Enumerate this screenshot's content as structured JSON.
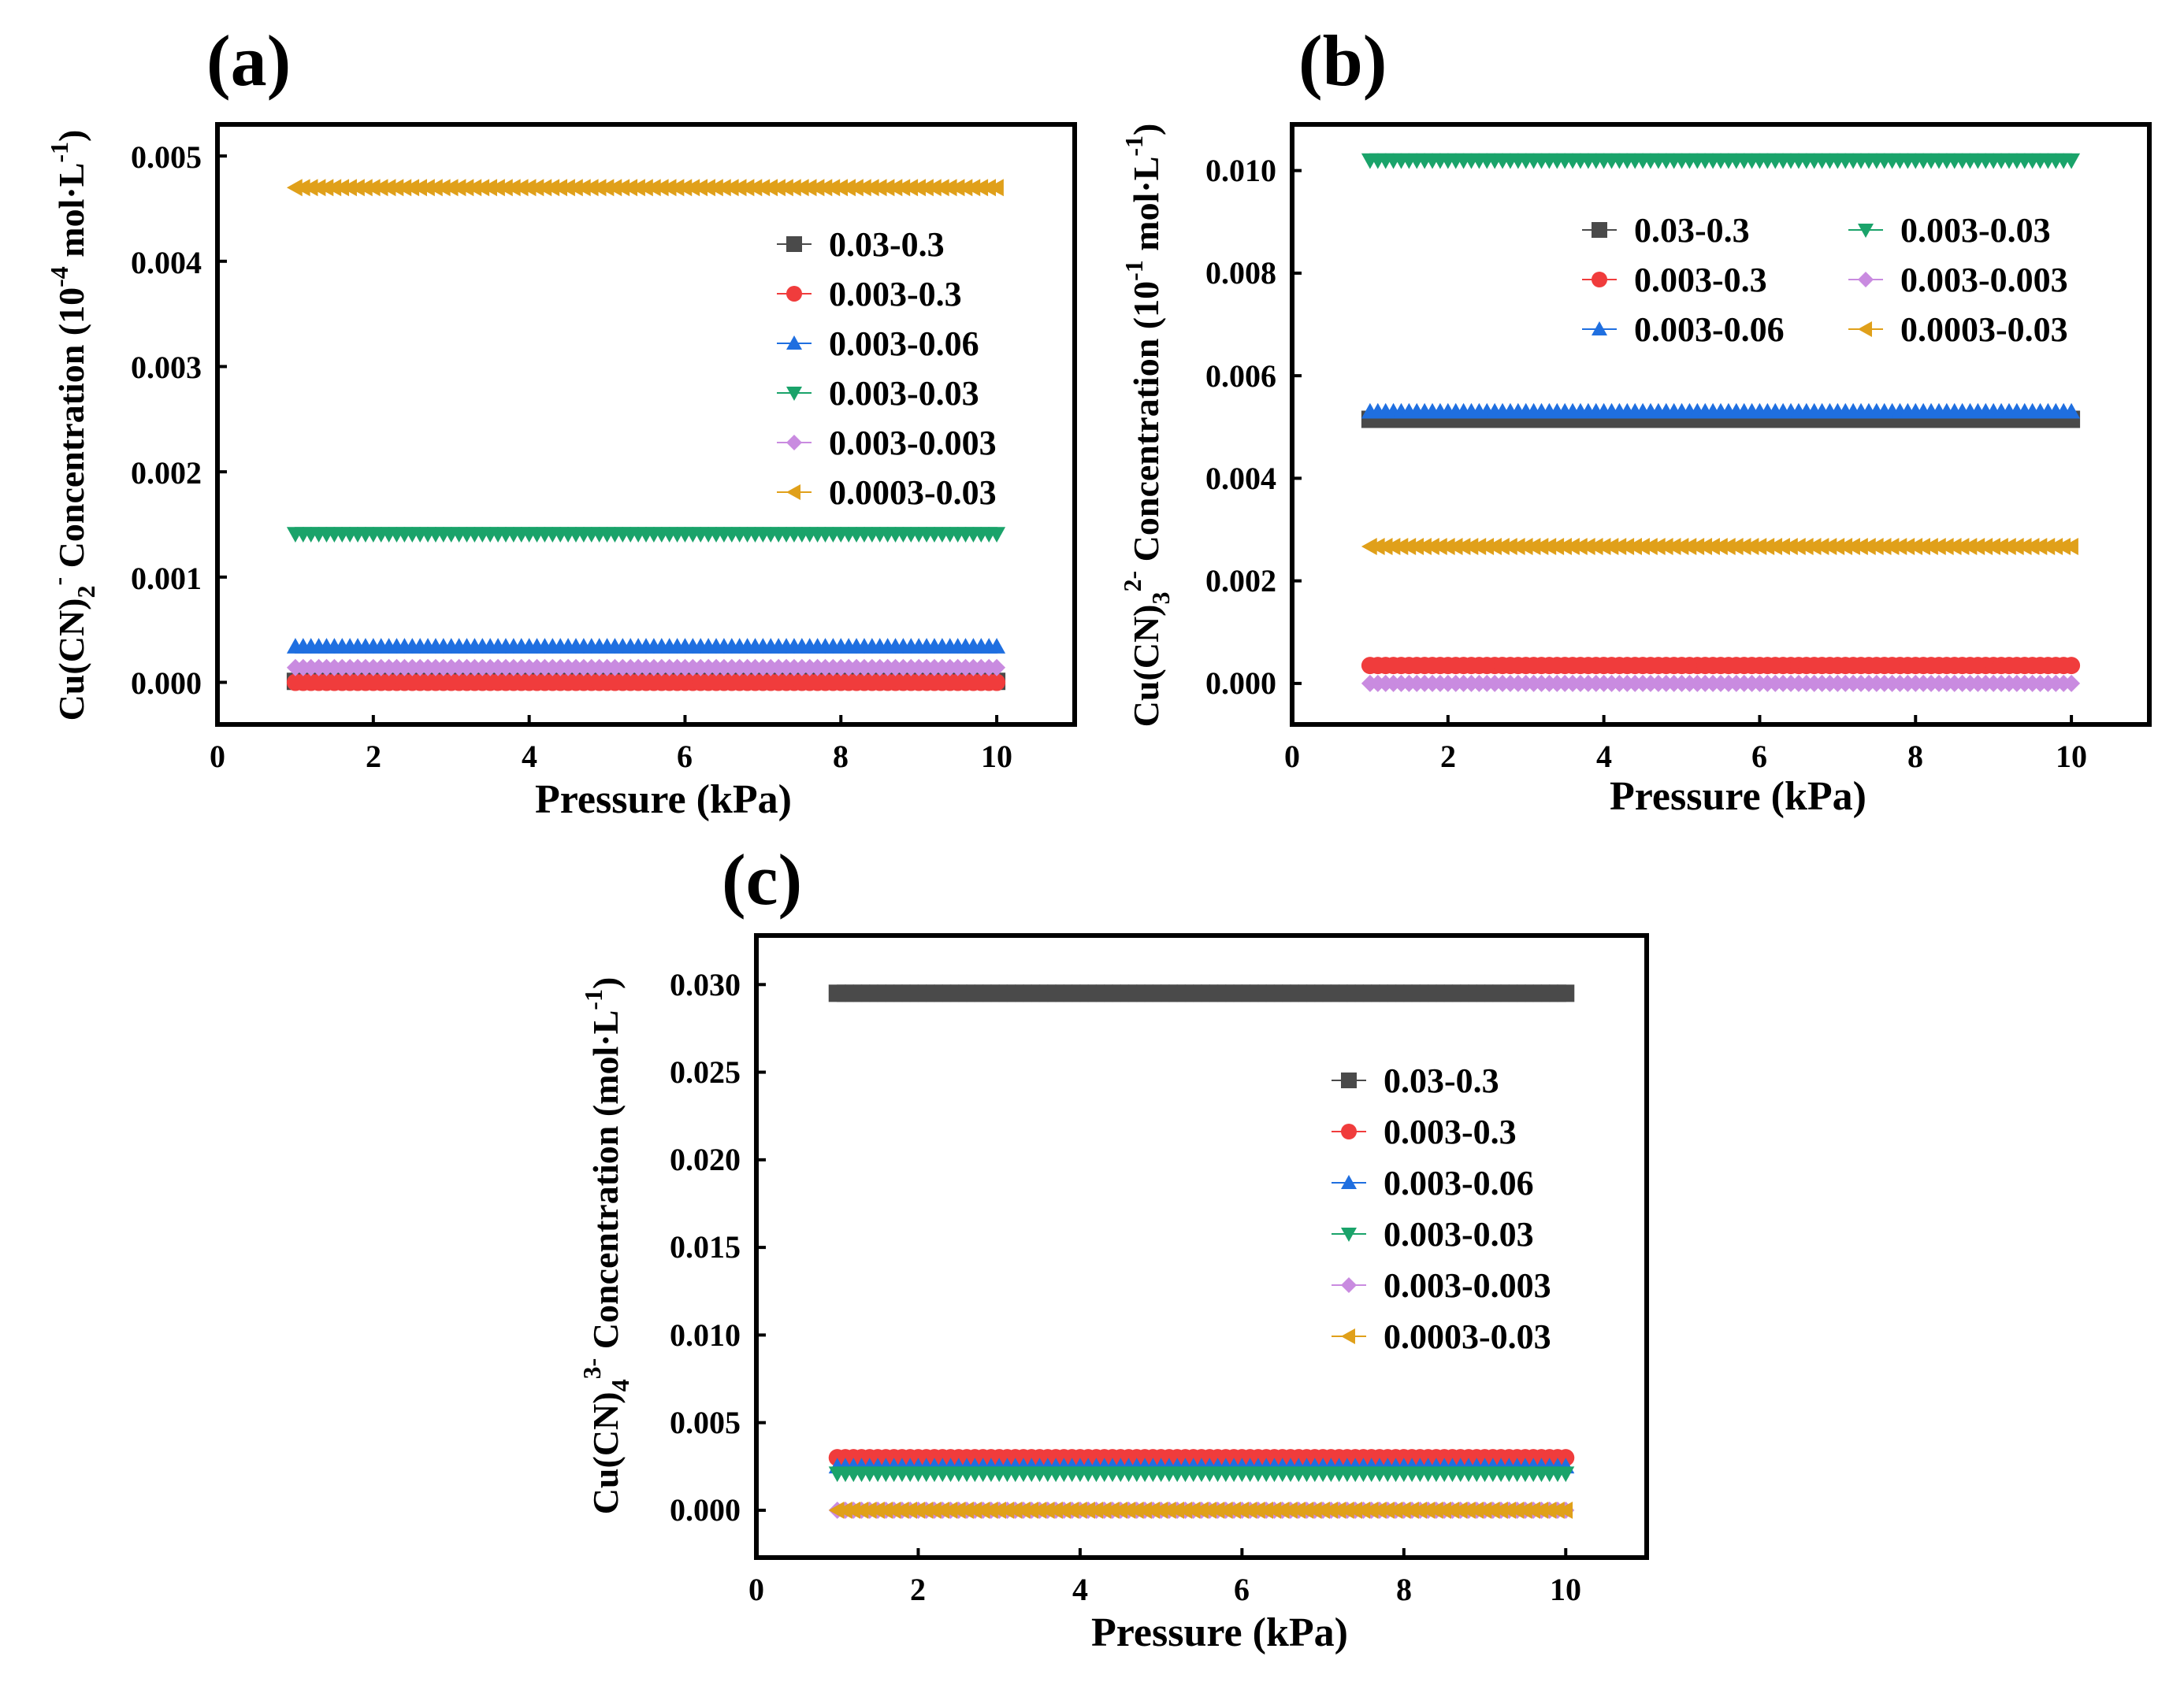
{
  "colors": {
    "s1": "#4a4a4a",
    "s2": "#f03c3c",
    "s3": "#1f6fe0",
    "s4": "#1aa36a",
    "s5": "#c98be0",
    "s6": "#e0a01a"
  },
  "chart_data": [
    {
      "panel_label": "(a)",
      "type": "line",
      "xlabel": "Pressure (kPa)",
      "ylabel": {
        "pre": "Cu(CN)",
        "sub": "2",
        "sup": "-",
        "post": " Concentration (10",
        "post_sup": "-4",
        "tail": " mol·L",
        "tail_sup": "-1",
        "end": ")"
      },
      "xlim": [
        0,
        11
      ],
      "ylim": [
        -0.0004,
        0.0053
      ],
      "x_ticks": [
        "0",
        "2",
        "4",
        "6",
        "8",
        "10"
      ],
      "y_ticks": [
        "0.000",
        "0.001",
        "0.002",
        "0.003",
        "0.004",
        "0.005"
      ],
      "x_range": [
        1,
        10
      ],
      "legend_position": "upper-right",
      "legend_columns": 1,
      "series": [
        {
          "name": "0.03-0.3",
          "marker": "square",
          "color": "#4a4a4a",
          "value": 1e-05
        },
        {
          "name": "0.003-0.3",
          "marker": "circle",
          "color": "#f03c3c",
          "value": 0.0
        },
        {
          "name": "0.003-0.06",
          "marker": "triangle-up",
          "color": "#1f6fe0",
          "value": 0.00034
        },
        {
          "name": "0.003-0.03",
          "marker": "triangle-down",
          "color": "#1aa36a",
          "value": 0.00141
        },
        {
          "name": "0.003-0.003",
          "marker": "diamond",
          "color": "#c98be0",
          "value": 0.00014
        },
        {
          "name": "0.0003-0.03",
          "marker": "triangle-left",
          "color": "#e0a01a",
          "value": 0.0047
        }
      ]
    },
    {
      "panel_label": "(b)",
      "type": "line",
      "xlabel": "Pressure (kPa)",
      "ylabel": {
        "pre": "Cu(CN)",
        "sub": "3",
        "sup": "2-",
        "post": " Concentration (10",
        "post_sup": "-1",
        "tail": " mol·L",
        "tail_sup": "-1",
        "end": ")"
      },
      "xlim": [
        0,
        11
      ],
      "ylim": [
        -0.0008,
        0.0109
      ],
      "x_ticks": [
        "0",
        "2",
        "4",
        "6",
        "8",
        "10"
      ],
      "y_ticks": [
        "0.000",
        "0.002",
        "0.004",
        "0.006",
        "0.008",
        "0.010"
      ],
      "x_range": [
        1,
        10
      ],
      "legend_position": "upper-right",
      "legend_columns": 2,
      "series": [
        {
          "name": "0.03-0.3",
          "marker": "square",
          "color": "#4a4a4a",
          "value": 0.00515
        },
        {
          "name": "0.003-0.3",
          "marker": "circle",
          "color": "#f03c3c",
          "value": 0.00035
        },
        {
          "name": "0.003-0.06",
          "marker": "triangle-up",
          "color": "#1f6fe0",
          "value": 0.0053
        },
        {
          "name": "0.003-0.03",
          "marker": "triangle-down",
          "color": "#1aa36a",
          "value": 0.0102
        },
        {
          "name": "0.003-0.003",
          "marker": "diamond",
          "color": "#c98be0",
          "value": 0.0
        },
        {
          "name": "0.0003-0.03",
          "marker": "triangle-left",
          "color": "#e0a01a",
          "value": 0.00267
        }
      ]
    },
    {
      "panel_label": "(c)",
      "type": "line",
      "xlabel": "Pressure (kPa)",
      "ylabel": {
        "pre": "Cu(CN)",
        "sub": "4",
        "sup": "3-",
        "post": " Concentration (mol·L",
        "post_sup": "-1",
        "tail": "",
        "tail_sup": "",
        "end": ")"
      },
      "xlim": [
        0,
        11
      ],
      "ylim": [
        -0.0027,
        0.0328
      ],
      "x_ticks": [
        "0",
        "2",
        "4",
        "6",
        "8",
        "10"
      ],
      "y_ticks": [
        "0.000",
        "0.005",
        "0.010",
        "0.015",
        "0.020",
        "0.025",
        "0.030"
      ],
      "x_range": [
        1,
        10
      ],
      "legend_position": "right",
      "legend_columns": 1,
      "series": [
        {
          "name": "0.03-0.3",
          "marker": "square",
          "color": "#4a4a4a",
          "value": 0.0295
        },
        {
          "name": "0.003-0.3",
          "marker": "circle",
          "color": "#f03c3c",
          "value": 0.003
        },
        {
          "name": "0.003-0.06",
          "marker": "triangle-up",
          "color": "#1f6fe0",
          "value": 0.0025
        },
        {
          "name": "0.003-0.03",
          "marker": "triangle-down",
          "color": "#1aa36a",
          "value": 0.0021
        },
        {
          "name": "0.003-0.003",
          "marker": "diamond",
          "color": "#c98be0",
          "value": 0.0
        },
        {
          "name": "0.0003-0.03",
          "marker": "triangle-left",
          "color": "#e0a01a",
          "value": 0.0
        }
      ]
    }
  ]
}
